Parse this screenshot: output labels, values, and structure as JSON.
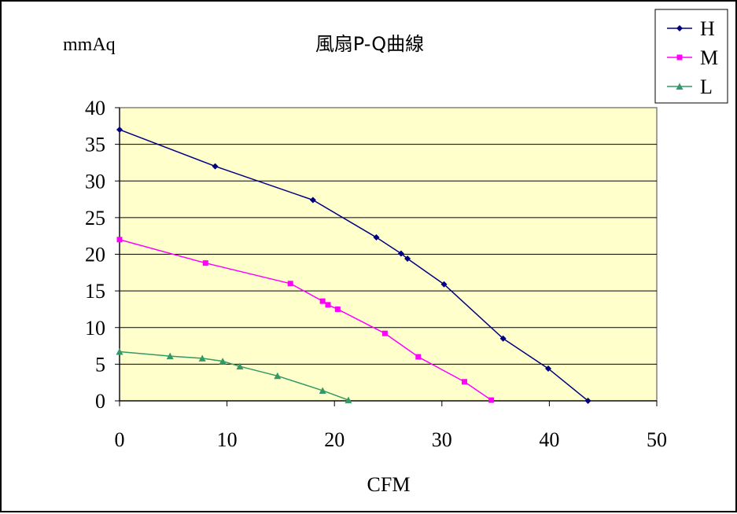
{
  "chart_data": {
    "type": "line",
    "title": "風扇P-Q曲線",
    "xlabel": "CFM",
    "ylabel": "mmAq",
    "xlim": [
      0,
      50
    ],
    "ylim": [
      0,
      40
    ],
    "x_ticks": [
      0,
      10,
      20,
      30,
      40,
      50
    ],
    "y_ticks": [
      0,
      5,
      10,
      15,
      20,
      25,
      30,
      35,
      40
    ],
    "x_tick_labels": [
      "0",
      "10",
      "20",
      "30",
      "40",
      "50"
    ],
    "y_tick_labels": [
      "0",
      "5",
      "10",
      "15",
      "20",
      "25",
      "30",
      "35",
      "40"
    ],
    "grid": "horizontal",
    "legend_position": "top-right",
    "plot_background": "#FFFFCC",
    "series": [
      {
        "name": "H",
        "color": "#000080",
        "marker": "diamond",
        "points": [
          [
            0,
            37
          ],
          [
            8.9,
            32
          ],
          [
            18,
            27.4
          ],
          [
            23.9,
            22.3
          ],
          [
            26.2,
            20.1
          ],
          [
            26.8,
            19.4
          ],
          [
            30.2,
            15.9
          ],
          [
            35.7,
            8.5
          ],
          [
            39.9,
            4.4
          ],
          [
            43.6,
            0
          ]
        ]
      },
      {
        "name": "M",
        "color": "#FF00FF",
        "marker": "square",
        "points": [
          [
            0,
            22
          ],
          [
            8,
            18.8
          ],
          [
            15.9,
            16
          ],
          [
            18.9,
            13.6
          ],
          [
            19.4,
            13.1
          ],
          [
            20.3,
            12.5
          ],
          [
            24.7,
            9.2
          ],
          [
            27.8,
            6
          ],
          [
            32.1,
            2.6
          ],
          [
            34.6,
            0.1
          ]
        ]
      },
      {
        "name": "L",
        "color": "#339966",
        "marker": "triangle",
        "points": [
          [
            0,
            6.7
          ],
          [
            4.7,
            6.1
          ],
          [
            7.7,
            5.8
          ],
          [
            9.6,
            5.4
          ],
          [
            11.2,
            4.7
          ],
          [
            14.7,
            3.4
          ],
          [
            18.9,
            1.4
          ],
          [
            21.3,
            0.1
          ]
        ]
      }
    ]
  }
}
